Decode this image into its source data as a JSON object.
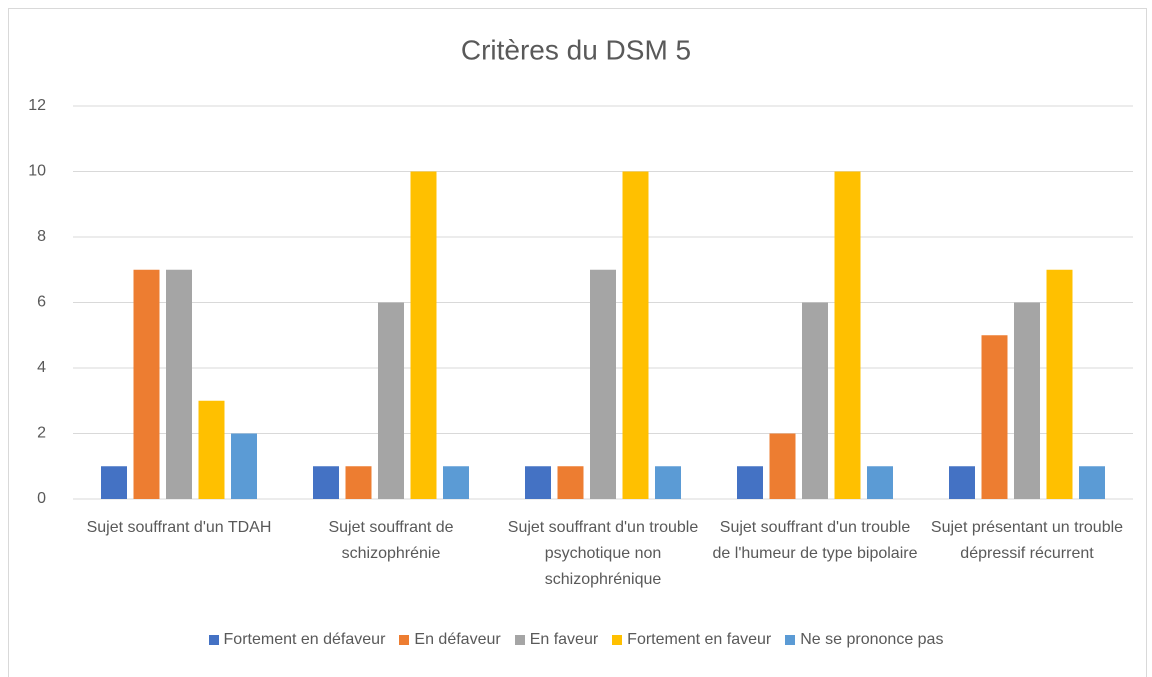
{
  "chart_data": {
    "type": "bar",
    "title": "Critères du DSM 5",
    "categories": [
      "Sujet souffrant d'un TDAH",
      "Sujet souffrant de schizophrénie",
      "Sujet souffrant d'un trouble psychotique non schizophrénique",
      "Sujet souffrant d'un trouble de l'humeur de type bipolaire",
      "Sujet présentant un trouble dépressif récurrent"
    ],
    "series": [
      {
        "name": "Fortement en défaveur",
        "color": "#4472c4",
        "values": [
          1,
          1,
          1,
          1,
          1
        ]
      },
      {
        "name": "En défaveur",
        "color": "#ed7d31",
        "values": [
          7,
          1,
          1,
          2,
          5
        ]
      },
      {
        "name": "En faveur",
        "color": "#a5a5a5",
        "values": [
          7,
          6,
          7,
          6,
          6
        ]
      },
      {
        "name": "Fortement en faveur",
        "color": "#ffc000",
        "values": [
          3,
          10,
          10,
          10,
          7
        ]
      },
      {
        "name": "Ne se prononce pas",
        "color": "#5b9bd5",
        "values": [
          2,
          1,
          1,
          1,
          1
        ]
      }
    ],
    "ylim": [
      0,
      12
    ],
    "yticks": [
      0,
      2,
      4,
      6,
      8,
      10,
      12
    ],
    "grid": true,
    "legend": "bottom"
  }
}
